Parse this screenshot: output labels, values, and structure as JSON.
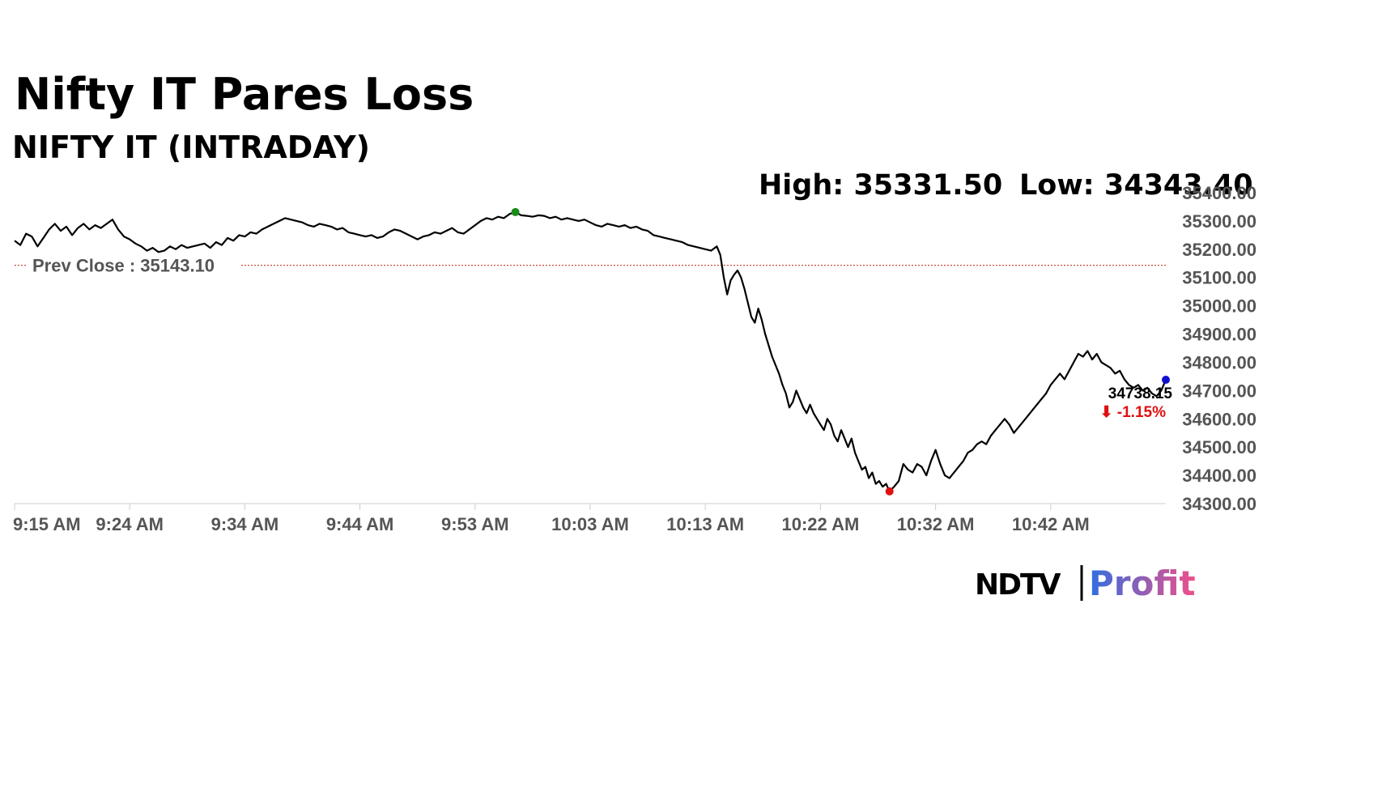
{
  "colors": {
    "line": "#000000",
    "prev_close": "#c0392b",
    "high_marker": "#1a8a1a",
    "low_marker": "#e01010",
    "last_marker": "#1010cc",
    "negative": "#e01010",
    "axis_text": "#555555",
    "profit_gradient_start": "#2f6fe0",
    "profit_gradient_end": "#f0508a"
  },
  "logo": {
    "brand": "NDTV",
    "sub": "Profit"
  },
  "chart_data": {
    "type": "line",
    "title": "Nifty IT Pares Loss",
    "subtitle": "NIFTY IT (INTRADAY)",
    "high_label": "High: 35331.50",
    "low_label": "Low: 34343.40",
    "high": 35331.5,
    "low": 34343.4,
    "prev_close": 35143.1,
    "prev_close_label": "Prev Close : 35143.10",
    "last_value": 34738.15,
    "last_value_label": "34738.15",
    "change_label": "⬇ -1.15%",
    "ylim": [
      34300,
      35400
    ],
    "yticks": [
      "34300.00",
      "34400.00",
      "34500.00",
      "34600.00",
      "34700.00",
      "34800.00",
      "34900.00",
      "35000.00",
      "35100.00",
      "35200.00",
      "35300.00",
      "35400.00"
    ],
    "xticks": [
      "9:15 AM",
      "9:24 AM",
      "9:34 AM",
      "9:44 AM",
      "9:53 AM",
      "10:03 AM",
      "10:13 AM",
      "10:22 AM",
      "10:32 AM",
      "10:42 AM"
    ],
    "time_range_minutes": [
      0,
      100
    ],
    "xtick_minutes": [
      0,
      10,
      20,
      30,
      40,
      50,
      60,
      70,
      80,
      90
    ],
    "series": [
      {
        "points": [
          [
            0,
            35230
          ],
          [
            0.5,
            35215
          ],
          [
            1,
            35255
          ],
          [
            1.5,
            35245
          ],
          [
            2,
            35210
          ],
          [
            2.5,
            35240
          ],
          [
            3,
            35270
          ],
          [
            3.5,
            35290
          ],
          [
            4,
            35265
          ],
          [
            4.5,
            35280
          ],
          [
            5,
            35250
          ],
          [
            5.5,
            35275
          ],
          [
            6,
            35290
          ],
          [
            6.5,
            35270
          ],
          [
            7,
            35285
          ],
          [
            7.5,
            35275
          ],
          [
            8,
            35290
          ],
          [
            8.5,
            35305
          ],
          [
            9,
            35270
          ],
          [
            9.5,
            35245
          ],
          [
            10,
            35235
          ],
          [
            10.5,
            35220
          ],
          [
            11,
            35210
          ],
          [
            11.5,
            35195
          ],
          [
            12,
            35205
          ],
          [
            12.5,
            35190
          ],
          [
            13,
            35195
          ],
          [
            13.5,
            35210
          ],
          [
            14,
            35200
          ],
          [
            14.5,
            35215
          ],
          [
            15,
            35205
          ],
          [
            15.5,
            35210
          ],
          [
            16,
            35215
          ],
          [
            16.5,
            35220
          ],
          [
            17,
            35205
          ],
          [
            17.5,
            35225
          ],
          [
            18,
            35215
          ],
          [
            18.5,
            35240
          ],
          [
            19,
            35230
          ],
          [
            19.5,
            35250
          ],
          [
            20,
            35245
          ],
          [
            20.5,
            35260
          ],
          [
            21,
            35255
          ],
          [
            21.5,
            35270
          ],
          [
            22,
            35280
          ],
          [
            22.5,
            35290
          ],
          [
            23,
            35300
          ],
          [
            23.5,
            35310
          ],
          [
            24,
            35305
          ],
          [
            24.5,
            35300
          ],
          [
            25,
            35295
          ],
          [
            25.5,
            35285
          ],
          [
            26,
            35280
          ],
          [
            26.5,
            35290
          ],
          [
            27,
            35285
          ],
          [
            27.5,
            35280
          ],
          [
            28,
            35270
          ],
          [
            28.5,
            35275
          ],
          [
            29,
            35260
          ],
          [
            29.5,
            35255
          ],
          [
            30,
            35250
          ],
          [
            30.5,
            35245
          ],
          [
            31,
            35250
          ],
          [
            31.5,
            35240
          ],
          [
            32,
            35245
          ],
          [
            32.5,
            35260
          ],
          [
            33,
            35270
          ],
          [
            33.5,
            35265
          ],
          [
            34,
            35255
          ],
          [
            34.5,
            35245
          ],
          [
            35,
            35235
          ],
          [
            35.5,
            35245
          ],
          [
            36,
            35250
          ],
          [
            36.5,
            35260
          ],
          [
            37,
            35255
          ],
          [
            37.5,
            35265
          ],
          [
            38,
            35275
          ],
          [
            38.5,
            35260
          ],
          [
            39,
            35255
          ],
          [
            39.5,
            35270
          ],
          [
            40,
            35285
          ],
          [
            40.5,
            35300
          ],
          [
            41,
            35310
          ],
          [
            41.5,
            35305
          ],
          [
            42,
            35315
          ],
          [
            42.5,
            35310
          ],
          [
            43,
            35325
          ],
          [
            43.5,
            35331.5
          ],
          [
            44,
            35320
          ],
          [
            44.5,
            35318
          ],
          [
            45,
            35315
          ],
          [
            45.5,
            35320
          ],
          [
            46,
            35318
          ],
          [
            46.5,
            35310
          ],
          [
            47,
            35315
          ],
          [
            47.5,
            35305
          ],
          [
            48,
            35310
          ],
          [
            48.5,
            35305
          ],
          [
            49,
            35300
          ],
          [
            49.5,
            35305
          ],
          [
            50,
            35295
          ],
          [
            50.5,
            35285
          ],
          [
            51,
            35280
          ],
          [
            51.5,
            35290
          ],
          [
            52,
            35285
          ],
          [
            52.5,
            35280
          ],
          [
            53,
            35285
          ],
          [
            53.5,
            35275
          ],
          [
            54,
            35280
          ],
          [
            54.5,
            35270
          ],
          [
            55,
            35265
          ],
          [
            55.5,
            35250
          ],
          [
            56,
            35245
          ],
          [
            56.5,
            35240
          ],
          [
            57,
            35235
          ],
          [
            57.5,
            35230
          ],
          [
            58,
            35225
          ],
          [
            58.5,
            35215
          ],
          [
            59,
            35210
          ],
          [
            59.5,
            35205
          ],
          [
            60,
            35200
          ],
          [
            60.5,
            35195
          ],
          [
            61,
            35210
          ],
          [
            61.3,
            35180
          ],
          [
            61.6,
            35100
          ],
          [
            61.9,
            35040
          ],
          [
            62.2,
            35090
          ],
          [
            62.5,
            35110
          ],
          [
            62.8,
            35125
          ],
          [
            63.1,
            35100
          ],
          [
            63.4,
            35060
          ],
          [
            63.7,
            35010
          ],
          [
            64,
            34960
          ],
          [
            64.3,
            34940
          ],
          [
            64.6,
            34990
          ],
          [
            64.9,
            34950
          ],
          [
            65.2,
            34900
          ],
          [
            65.5,
            34860
          ],
          [
            65.8,
            34820
          ],
          [
            66.1,
            34790
          ],
          [
            66.4,
            34760
          ],
          [
            66.7,
            34720
          ],
          [
            67,
            34690
          ],
          [
            67.3,
            34640
          ],
          [
            67.6,
            34660
          ],
          [
            67.9,
            34700
          ],
          [
            68.2,
            34670
          ],
          [
            68.5,
            34640
          ],
          [
            68.8,
            34620
          ],
          [
            69.1,
            34650
          ],
          [
            69.4,
            34620
          ],
          [
            69.7,
            34600
          ],
          [
            70,
            34580
          ],
          [
            70.3,
            34560
          ],
          [
            70.6,
            34600
          ],
          [
            70.9,
            34580
          ],
          [
            71.2,
            34540
          ],
          [
            71.5,
            34520
          ],
          [
            71.8,
            34560
          ],
          [
            72.1,
            34530
          ],
          [
            72.4,
            34500
          ],
          [
            72.7,
            34530
          ],
          [
            73,
            34480
          ],
          [
            73.3,
            34450
          ],
          [
            73.6,
            34420
          ],
          [
            73.9,
            34430
          ],
          [
            74.2,
            34390
          ],
          [
            74.5,
            34410
          ],
          [
            74.8,
            34370
          ],
          [
            75.1,
            34380
          ],
          [
            75.4,
            34360
          ],
          [
            75.7,
            34370
          ],
          [
            76,
            34343.4
          ],
          [
            76.4,
            34360
          ],
          [
            76.8,
            34380
          ],
          [
            77.2,
            34440
          ],
          [
            77.6,
            34420
          ],
          [
            78,
            34410
          ],
          [
            78.4,
            34440
          ],
          [
            78.8,
            34430
          ],
          [
            79.2,
            34400
          ],
          [
            79.6,
            34450
          ],
          [
            80,
            34490
          ],
          [
            80.4,
            34440
          ],
          [
            80.8,
            34400
          ],
          [
            81.2,
            34390
          ],
          [
            81.6,
            34410
          ],
          [
            82,
            34430
          ],
          [
            82.4,
            34450
          ],
          [
            82.8,
            34480
          ],
          [
            83.2,
            34490
          ],
          [
            83.6,
            34510
          ],
          [
            84,
            34520
          ],
          [
            84.4,
            34510
          ],
          [
            84.8,
            34540
          ],
          [
            85.2,
            34560
          ],
          [
            85.6,
            34580
          ],
          [
            86,
            34600
          ],
          [
            86.4,
            34580
          ],
          [
            86.8,
            34550
          ],
          [
            87.2,
            34570
          ],
          [
            87.6,
            34590
          ],
          [
            88,
            34610
          ],
          [
            88.4,
            34630
          ],
          [
            88.8,
            34650
          ],
          [
            89.2,
            34670
          ],
          [
            89.6,
            34690
          ],
          [
            90,
            34720
          ],
          [
            90.4,
            34740
          ],
          [
            90.8,
            34760
          ],
          [
            91.2,
            34740
          ],
          [
            91.6,
            34770
          ],
          [
            92,
            34800
          ],
          [
            92.4,
            34830
          ],
          [
            92.8,
            34820
          ],
          [
            93.2,
            34840
          ],
          [
            93.6,
            34810
          ],
          [
            94,
            34830
          ],
          [
            94.4,
            34800
          ],
          [
            94.8,
            34790
          ],
          [
            95.2,
            34780
          ],
          [
            95.6,
            34760
          ],
          [
            96,
            34770
          ],
          [
            96.4,
            34740
          ],
          [
            96.8,
            34720
          ],
          [
            97.2,
            34710
          ],
          [
            97.6,
            34720
          ],
          [
            98,
            34700
          ],
          [
            98.4,
            34710
          ],
          [
            98.8,
            34690
          ],
          [
            99.2,
            34680
          ],
          [
            99.6,
            34700
          ],
          [
            100,
            34738.15
          ]
        ]
      }
    ]
  }
}
